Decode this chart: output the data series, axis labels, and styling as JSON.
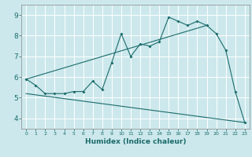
{
  "background_color": "#cce8ec",
  "grid_color": "#ffffff",
  "line_color": "#1a6b6b",
  "xlabel": "Humidex (Indice chaleur)",
  "xlim": [
    -0.5,
    23.5
  ],
  "ylim": [
    3.5,
    9.5
  ],
  "yticks": [
    4,
    5,
    6,
    7,
    8,
    9
  ],
  "xticks": [
    0,
    1,
    2,
    3,
    4,
    5,
    6,
    7,
    8,
    9,
    10,
    11,
    12,
    13,
    14,
    15,
    16,
    17,
    18,
    19,
    20,
    21,
    22,
    23
  ],
  "line1_x": [
    0,
    1,
    2,
    3,
    4,
    5,
    6,
    7,
    8,
    9,
    10,
    11,
    12,
    13,
    14,
    15,
    16,
    17,
    18,
    19,
    20,
    21,
    22,
    23
  ],
  "line1_y": [
    5.9,
    5.6,
    5.2,
    5.2,
    5.2,
    5.3,
    5.3,
    5.8,
    5.4,
    6.7,
    8.1,
    7.0,
    7.6,
    7.5,
    7.7,
    8.9,
    8.7,
    8.5,
    8.7,
    8.5,
    8.1,
    7.3,
    5.3,
    3.8
  ],
  "line2_x": [
    0,
    19
  ],
  "line2_y": [
    5.9,
    8.5
  ],
  "line3_x": [
    0,
    23
  ],
  "line3_y": [
    5.2,
    3.8
  ]
}
